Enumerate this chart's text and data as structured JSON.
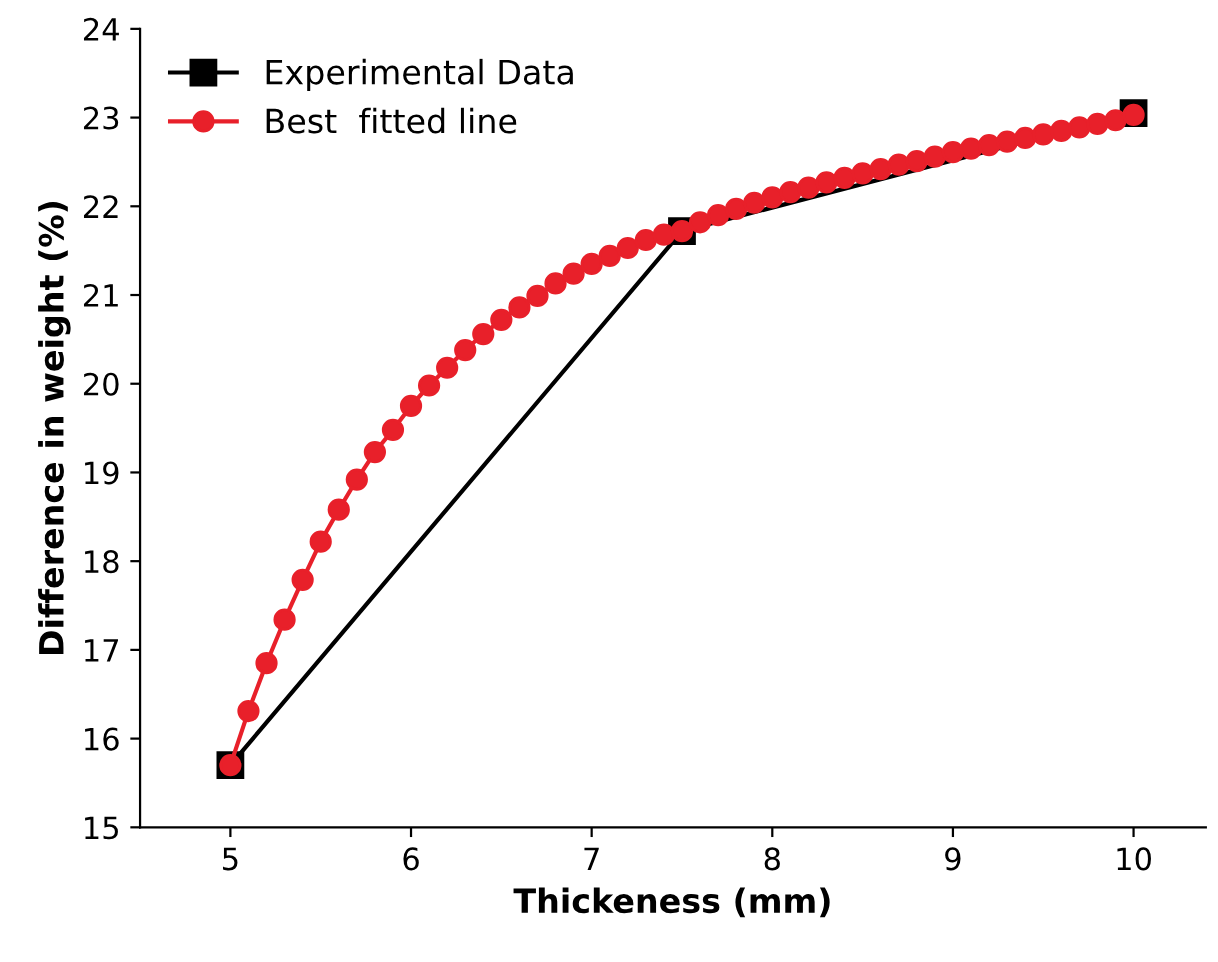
{
  "chart_data": {
    "type": "line",
    "xlabel": "Thickeness (mm)",
    "ylabel": "Difference in weight (%)",
    "xlim": [
      4.5,
      10.4
    ],
    "ylim": [
      15,
      24
    ],
    "xticks": [
      5,
      6,
      7,
      8,
      9,
      10
    ],
    "yticks": [
      15,
      16,
      17,
      18,
      19,
      20,
      21,
      22,
      23,
      24
    ],
    "legend": "top left",
    "grid": false,
    "series": [
      {
        "name": "Experimental Data",
        "color": "#000000",
        "marker": "square",
        "x": [
          5,
          7.5,
          10
        ],
        "values": [
          15.7,
          21.72,
          23.05
        ]
      },
      {
        "name": "Best  fitted line",
        "color": "#e8202a",
        "marker": "circle",
        "x": [
          5.0,
          5.1,
          5.2,
          5.3,
          5.4,
          5.5,
          5.6,
          5.7,
          5.8,
          5.9,
          6.0,
          6.1,
          6.2,
          6.3,
          6.4,
          6.5,
          6.6,
          6.7,
          6.8,
          6.9,
          7.0,
          7.1,
          7.2,
          7.3,
          7.4,
          7.5,
          7.6,
          7.7,
          7.8,
          7.9,
          8.0,
          8.1,
          8.2,
          8.3,
          8.4,
          8.5,
          8.6,
          8.7,
          8.8,
          8.9,
          9.0,
          9.1,
          9.2,
          9.3,
          9.4,
          9.5,
          9.6,
          9.7,
          9.8,
          9.9,
          10.0
        ],
        "values": [
          15.7,
          16.31,
          16.85,
          17.34,
          17.79,
          18.22,
          18.58,
          18.92,
          19.23,
          19.48,
          19.75,
          19.98,
          20.18,
          20.38,
          20.56,
          20.72,
          20.86,
          20.99,
          21.13,
          21.24,
          21.35,
          21.44,
          21.53,
          21.62,
          21.68,
          21.72,
          21.82,
          21.9,
          21.97,
          22.04,
          22.1,
          22.16,
          22.21,
          22.27,
          22.32,
          22.37,
          22.42,
          22.47,
          22.51,
          22.56,
          22.61,
          22.65,
          22.69,
          22.73,
          22.77,
          22.81,
          22.85,
          22.89,
          22.93,
          22.97,
          23.03
        ]
      }
    ]
  }
}
